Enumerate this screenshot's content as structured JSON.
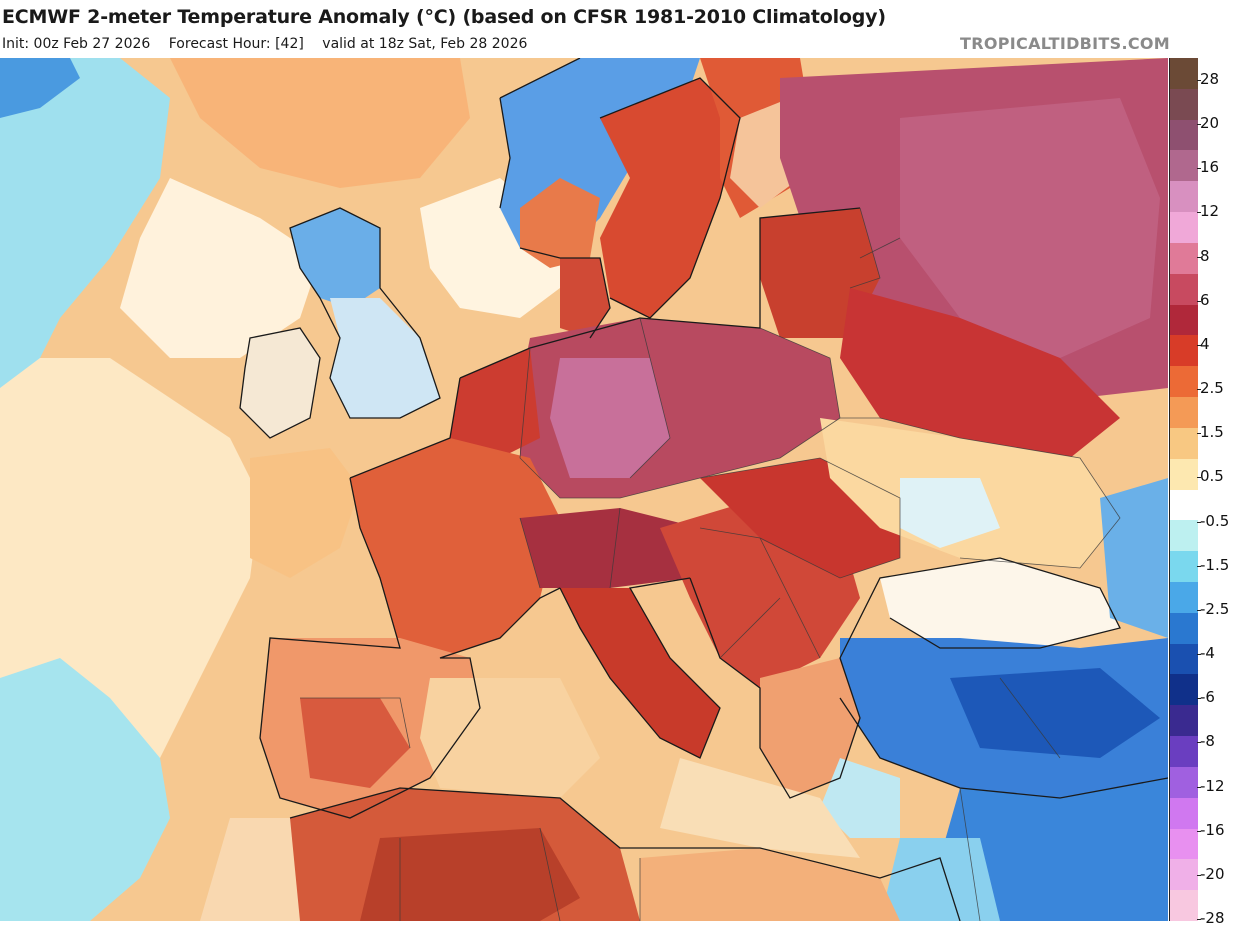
{
  "header": {
    "title": "ECMWF 2-meter Temperature Anomaly (°C) (based on CFSR 1981-2010 Climatology)",
    "init": "Init: 00z Feb 27 2026",
    "forecast_hour": "Forecast Hour: [42]",
    "valid": "valid at 18z Sat, Feb 28 2026",
    "brand": "TROPICALTIDBITS.COM"
  },
  "colorbar": {
    "labels": [
      "28",
      "20",
      "16",
      "12",
      "8",
      "6",
      "4",
      "2.5",
      "1.5",
      "0.5",
      "-0.5",
      "-1.5",
      "-2.5",
      "-4",
      "-6",
      "-8",
      "-12",
      "-16",
      "-20",
      "-28"
    ],
    "colors": [
      "#6b4a36",
      "#7a4a52",
      "#8e5070",
      "#b0688e",
      "#d890c0",
      "#f0a8d8",
      "#e07a98",
      "#c84a60",
      "#b0283a",
      "#d83c28",
      "#ec6a36",
      "#f49a56",
      "#f8c882",
      "#fde8b0",
      "#ffffff",
      "#bdf0f0",
      "#7ad8ee",
      "#4aa8e8",
      "#2a78d0",
      "#1a50b0",
      "#10308a",
      "#3a2a90",
      "#6a3ec0",
      "#a060e0",
      "#d078f0",
      "#e890f0",
      "#f0b0e8",
      "#f8c8e0"
    ]
  },
  "map": {
    "region": "Europe",
    "colors": {
      "water_warm": "#f6c890",
      "water_mild": "#fbdcae",
      "water_cold": "#8fdcee",
      "land_hot": "#c83a2e",
      "land_very_hot": "#a52844",
      "land_extreme": "#b0506e",
      "land_warm": "#e86a3a",
      "land_cold": "#3a88dc",
      "land_very_cold": "#1d5ab8",
      "border": "#1a1a1a"
    }
  }
}
